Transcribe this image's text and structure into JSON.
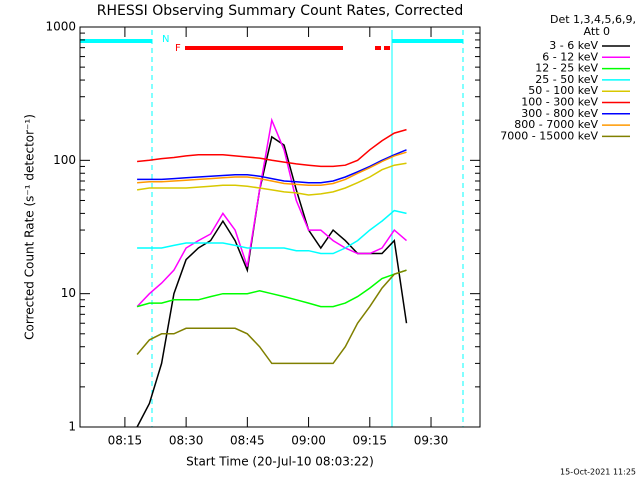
{
  "chart_data": {
    "type": "line",
    "title": "RHESSI Observing Summary Count Rates, Corrected",
    "x_label": "Start Time (20-Jul-10 08:03:22)",
    "y_label": "Corrected Count Rate (s⁻¹ detector⁻¹)",
    "legend_title": "Det 1,3,4,5,6,9,",
    "legend_subtitle": "Att 0",
    "night_label": "N",
    "flare_label": "F",
    "footer": "15-Oct-2021 11:25",
    "y_log": true,
    "legend_position": "right",
    "xlim": [
      484,
      582
    ],
    "xticks": [
      {
        "value": 495,
        "label": "08:15"
      },
      {
        "value": 510,
        "label": "08:30"
      },
      {
        "value": 525,
        "label": "08:45"
      },
      {
        "value": 540,
        "label": "09:00"
      },
      {
        "value": 555,
        "label": "09:15"
      },
      {
        "value": 570,
        "label": "09:30"
      }
    ],
    "ylim": [
      1,
      1000
    ],
    "yticks": [
      1,
      10,
      100,
      1000
    ],
    "x": [
      498,
      501,
      504,
      507,
      510,
      513,
      516,
      519,
      522,
      525,
      528,
      531,
      534,
      537,
      540,
      543,
      546,
      549,
      552,
      555,
      558,
      561,
      564
    ],
    "series": [
      {
        "name": "3 - 6 keV",
        "color": "#000000",
        "values": [
          1,
          1.5,
          3,
          10,
          18,
          22,
          25,
          35,
          25,
          15,
          60,
          150,
          130,
          60,
          30,
          22,
          30,
          25,
          20,
          20,
          20,
          25,
          6
        ]
      },
      {
        "name": "6 - 12 keV",
        "color": "#ff00ff",
        "values": [
          8,
          10,
          12,
          15,
          22,
          25,
          28,
          40,
          30,
          16,
          60,
          200,
          120,
          50,
          30,
          30,
          25,
          22,
          20,
          20,
          22,
          30,
          25
        ]
      },
      {
        "name": "12 - 25 keV",
        "color": "#00ff00",
        "values": [
          8,
          8.5,
          8.5,
          9,
          9,
          9,
          9.5,
          10,
          10,
          10,
          10.5,
          10,
          9.5,
          9,
          8.5,
          8,
          8,
          8.5,
          9.5,
          11,
          13,
          14,
          15
        ]
      },
      {
        "name": "25 - 50 keV",
        "color": "#00ffff",
        "values": [
          22,
          22,
          22,
          23,
          24,
          24,
          24,
          24,
          23,
          22,
          22,
          22,
          22,
          21,
          21,
          20,
          20,
          22,
          25,
          30,
          35,
          42,
          40
        ]
      },
      {
        "name": "50 - 100 keV",
        "color": "#d8c800",
        "values": [
          60,
          62,
          62,
          62,
          62,
          63,
          64,
          65,
          65,
          64,
          62,
          60,
          58,
          57,
          55,
          56,
          58,
          62,
          68,
          75,
          85,
          92,
          95
        ]
      },
      {
        "name": "100 - 300 keV",
        "color": "#ff0000",
        "values": [
          98,
          100,
          103,
          105,
          108,
          110,
          110,
          110,
          108,
          106,
          104,
          100,
          97,
          94,
          92,
          90,
          90,
          92,
          100,
          120,
          140,
          160,
          170
        ]
      },
      {
        "name": "300 - 800 keV",
        "color": "#0000ff",
        "values": [
          72,
          72,
          72,
          73,
          74,
          75,
          76,
          77,
          78,
          78,
          76,
          73,
          70,
          69,
          68,
          68,
          70,
          75,
          82,
          90,
          100,
          110,
          120
        ]
      },
      {
        "name": "800 - 7000 keV",
        "color": "#ff9900",
        "values": [
          68,
          69,
          69,
          70,
          71,
          72,
          73,
          74,
          75,
          75,
          73,
          70,
          67,
          66,
          65,
          65,
          67,
          72,
          80,
          88,
          98,
          108,
          115
        ]
      },
      {
        "name": "7000 - 15000 keV",
        "color": "#808000",
        "values": [
          3.5,
          4.5,
          5,
          5,
          5.5,
          5.5,
          5.5,
          5.5,
          5.5,
          5,
          4,
          3,
          3,
          3,
          3,
          3,
          3,
          4,
          6,
          8,
          11,
          14,
          15
        ]
      }
    ]
  }
}
